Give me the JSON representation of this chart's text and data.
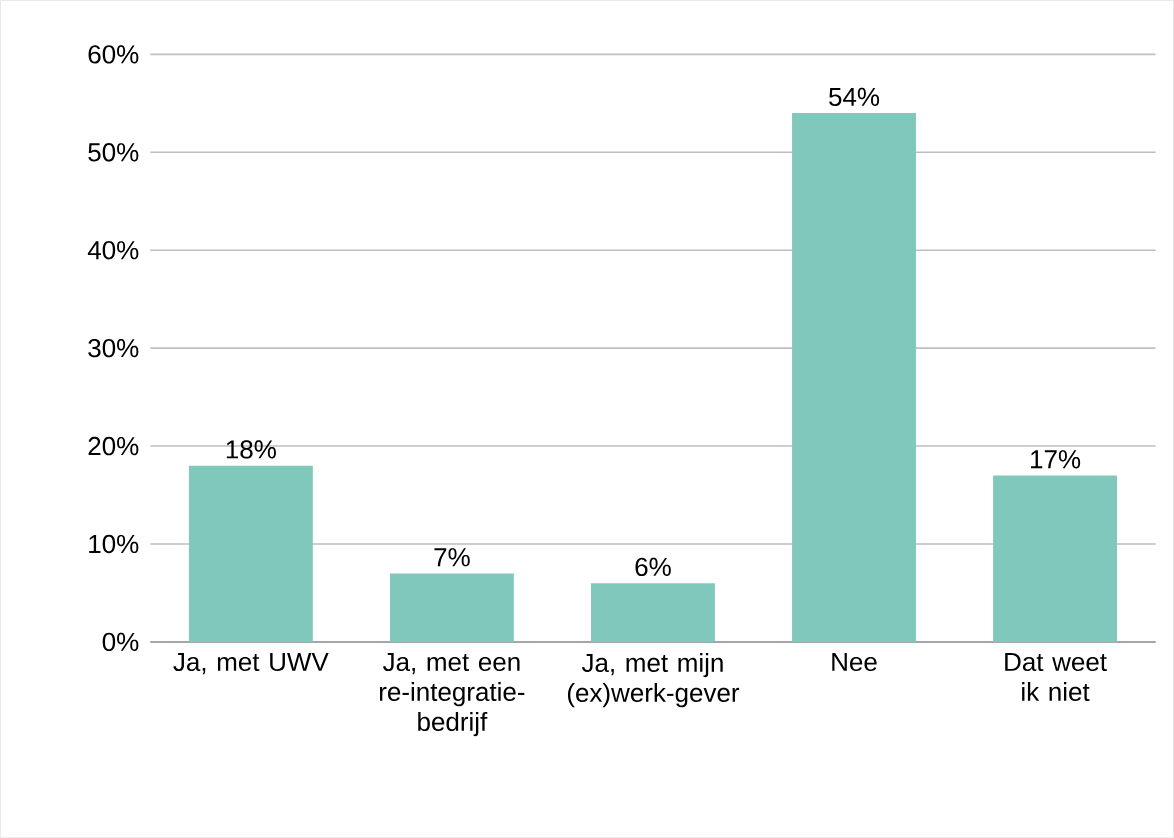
{
  "chart_data": {
    "type": "bar",
    "categories": [
      "Ja, met UWV",
      "Ja, met een re-integratie-bedrijf",
      "Ja, met mijn (ex)werk-gever",
      "Nee",
      "Dat weet ik niet"
    ],
    "values": [
      18,
      7,
      6,
      54,
      17
    ],
    "value_labels": [
      "18%",
      "7%",
      "6%",
      "54%",
      "17%"
    ],
    "color": "#80c8bb",
    "ylim": [
      0,
      60
    ],
    "yticks": [
      {
        "value": 0,
        "label": "0%"
      },
      {
        "value": 10,
        "label": "10%"
      },
      {
        "value": 20,
        "label": "20%"
      },
      {
        "value": 30,
        "label": "30%"
      },
      {
        "value": 40,
        "label": "40%"
      },
      {
        "value": 50,
        "label": "50%"
      },
      {
        "value": 60,
        "label": "60%"
      }
    ],
    "grid": "y"
  }
}
